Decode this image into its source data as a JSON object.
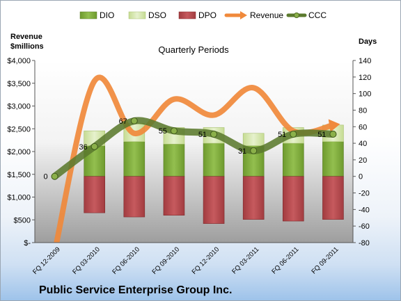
{
  "chart_data": {
    "type": "bar",
    "title": "Quarterly Periods",
    "company": "Public Service Enterprise Group Inc.",
    "y_left_label_line1": "Revenue",
    "y_left_label_line2": "$millions",
    "y_right_label": "Days",
    "categories": [
      "FQ 12-2009",
      "FQ 03-2010",
      "FQ 06-2010",
      "FQ 09-2010",
      "FQ 12-2010",
      "FQ 03-2011",
      "FQ 06-2011",
      "FQ 09-2011"
    ],
    "ylim_left": [
      0,
      4000
    ],
    "ylim_right": [
      -80,
      140
    ],
    "left_ticks": [
      "$-",
      "$500",
      "$1,000",
      "$1,500",
      "$2,000",
      "$2,500",
      "$3,000",
      "$3,500",
      "$4,000"
    ],
    "right_ticks": [
      "-80",
      "-60",
      "-40",
      "-20",
      "0",
      "20",
      "40",
      "60",
      "80",
      "100",
      "120",
      "140"
    ],
    "legend": [
      "DIO",
      "DSO",
      "DPO",
      "Revenue",
      "CCC"
    ],
    "series": [
      {
        "name": "DIO",
        "axis": "right",
        "values": [
          null,
          37,
          42,
          39,
          40,
          37,
          40,
          42
        ]
      },
      {
        "name": "DSO",
        "axis": "right",
        "values": [
          null,
          18,
          22,
          20,
          19,
          15,
          19,
          20
        ]
      },
      {
        "name": "DPO",
        "axis": "right",
        "values": [
          null,
          -44,
          -49,
          -47,
          -57,
          -52,
          -54,
          -52
        ]
      },
      {
        "name": "Revenue",
        "axis": "left",
        "values": [
          -200,
          3550,
          2400,
          3150,
          2800,
          3400,
          2450,
          2580
        ]
      },
      {
        "name": "CCC",
        "axis": "right",
        "values": [
          0,
          36,
          67,
          55,
          51,
          31,
          51,
          51
        ]
      }
    ],
    "data_labels": [
      "0",
      "36",
      "67",
      "55",
      "51",
      "31",
      "51",
      "51"
    ],
    "colors": {
      "DIO": "#7aa33a",
      "DSO": "#d2e4a9",
      "DPO": "#b5474b",
      "Revenue": "#f0893b",
      "CCC": "#5b7a2e"
    }
  }
}
